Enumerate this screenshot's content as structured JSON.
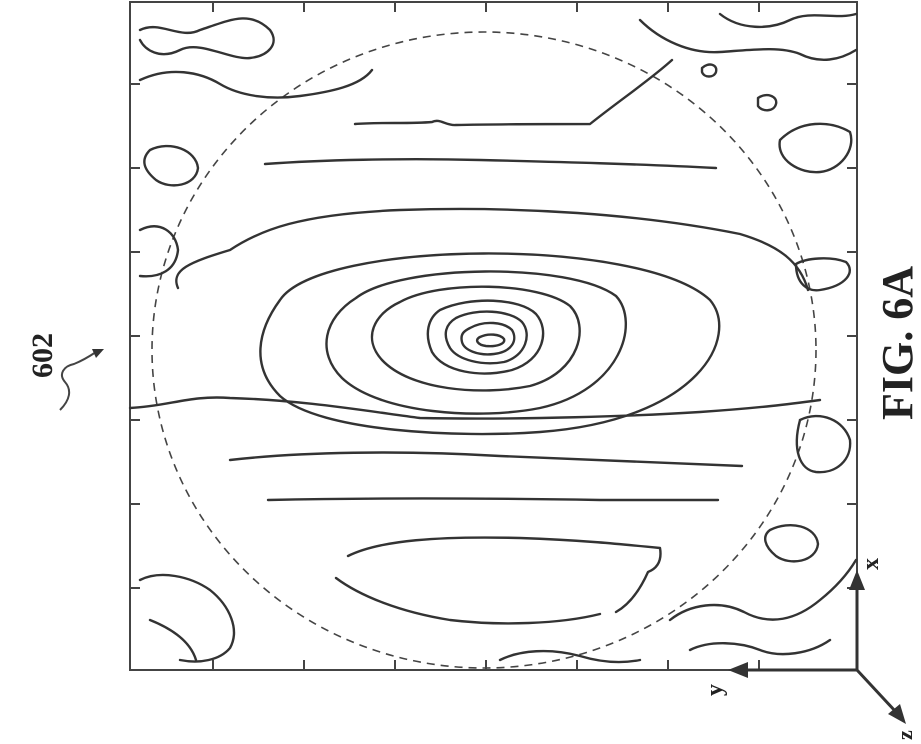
{
  "figure": {
    "reference_number": "602",
    "caption": "FIG. 6A"
  },
  "axes": {
    "x_label": "x",
    "y_label": "y",
    "z_label": "z"
  },
  "colors": {
    "ink": "#333333",
    "background": "#ffffff"
  }
}
